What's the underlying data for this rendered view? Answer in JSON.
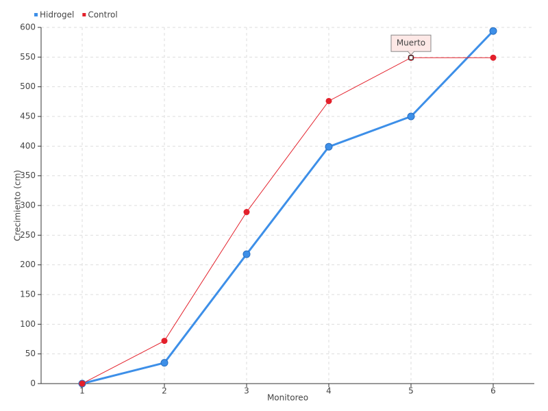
{
  "chart_data": {
    "type": "line",
    "x_label": "Monitoreo",
    "y_label": "Crecimiento (cm)",
    "x": [
      1,
      2,
      3,
      4,
      5,
      6
    ],
    "series": [
      {
        "name": "Hidrogel",
        "color": "#3d8fe8",
        "values": [
          0,
          35,
          218,
          399,
          450,
          594
        ]
      },
      {
        "name": "Control",
        "color": "#e3202b",
        "values": [
          0,
          72,
          289,
          476,
          549,
          549
        ]
      }
    ],
    "xlim": [
      0.5,
      6.5
    ],
    "xticks": [
      1,
      2,
      3,
      4,
      5,
      6
    ],
    "ylim": [
      0,
      600
    ],
    "yticks": [
      0,
      50,
      100,
      150,
      200,
      250,
      300,
      350,
      400,
      450,
      500,
      550,
      600
    ],
    "grid": true,
    "legend": "top-left",
    "annotations": [
      {
        "text": "Muerto",
        "x": 5,
        "y": 549
      }
    ]
  }
}
